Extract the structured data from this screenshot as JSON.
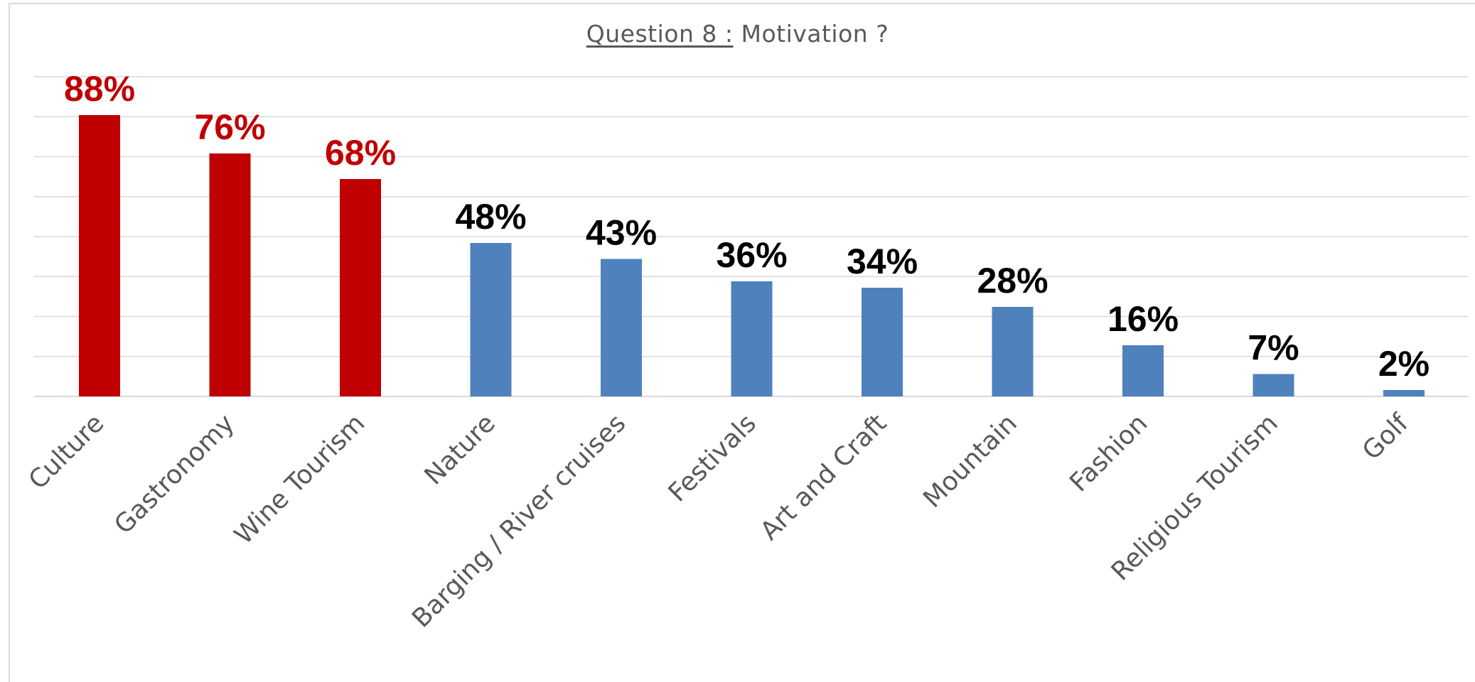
{
  "chart_data": {
    "type": "bar",
    "title_prefix": "Question 8 :",
    "title_rest": " Motivation ?",
    "categories": [
      "Culture",
      "Gastronomy",
      "Wine Tourism",
      "Nature",
      "Barging / River cruises",
      "Festivals",
      "Art and Craft",
      "Mountain",
      "Fashion",
      "Religious Tourism",
      "Golf"
    ],
    "values": [
      88,
      76,
      68,
      48,
      43,
      36,
      34,
      28,
      16,
      7,
      2
    ],
    "data_labels": [
      "88%",
      "76%",
      "68%",
      "48%",
      "43%",
      "36%",
      "34%",
      "28%",
      "16%",
      "7%",
      "2%"
    ],
    "highlight_count": 3,
    "ylim": [
      0,
      100
    ],
    "grid": true,
    "legend": "none",
    "colors": {
      "highlight_bar": "#c00000",
      "highlight_label": "#c00000",
      "bar": "#4f81bd",
      "label": "#000000",
      "gridline": "#d9d9d9",
      "category_text": "#595959"
    }
  }
}
